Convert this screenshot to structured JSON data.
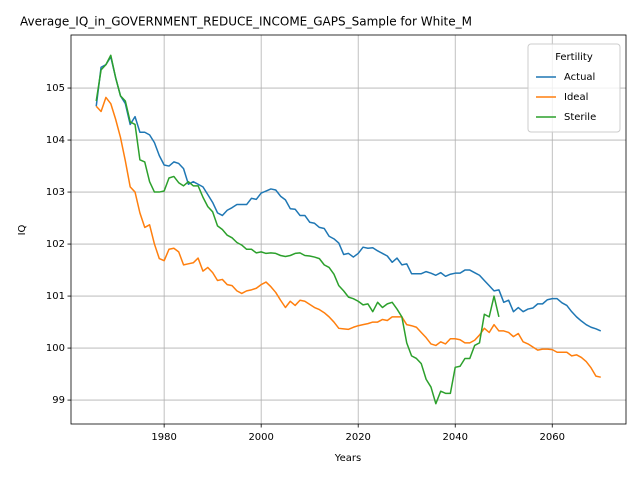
{
  "chart_data": {
    "type": "line",
    "title": "Average_IQ_in_GOVERNMENT_REDUCE_INCOME_GAPS_Sample for White_M",
    "x_label": "Years",
    "y_label": "IQ",
    "legend_title": "Fertility",
    "legend_loc": "upper right",
    "grid": true,
    "xlim": [
      1960.8,
      2075.2
    ],
    "xticks": [
      1980,
      2000,
      2020,
      2040,
      2060
    ],
    "ylim": [
      98.54,
      106.02
    ],
    "yticks": [
      99,
      100,
      101,
      102,
      103,
      104,
      105
    ],
    "x": [
      1966,
      1967,
      1968,
      1969,
      1970,
      1971,
      1972,
      1973,
      1974,
      1975,
      1976,
      1977,
      1978,
      1979,
      1980,
      1981,
      1982,
      1983,
      1984,
      1985,
      1986,
      1987,
      1988,
      1989,
      1990,
      1991,
      1992,
      1993,
      1994,
      1995,
      1996,
      1997,
      1998,
      1999,
      2000,
      2001,
      2002,
      2003,
      2004,
      2005,
      2006,
      2007,
      2008,
      2009,
      2010,
      2011,
      2012,
      2013,
      2014,
      2015,
      2016,
      2017,
      2018,
      2019,
      2020,
      2021,
      2022,
      2023,
      2024,
      2025,
      2026,
      2027,
      2028,
      2029,
      2030,
      2031,
      2032,
      2033,
      2034,
      2035,
      2036,
      2037,
      2038,
      2039,
      2040,
      2041,
      2042,
      2043,
      2044,
      2045,
      2046,
      2047,
      2048,
      2049,
      2050,
      2051,
      2052,
      2053,
      2054,
      2055,
      2056,
      2057,
      2058,
      2059,
      2060,
      2061,
      2062,
      2063,
      2064,
      2065,
      2066,
      2067,
      2068,
      2069,
      2070
    ],
    "series": [
      {
        "name": "Actual",
        "color": "#1f77b4",
        "values": [
          104.65,
          105.4,
          105.45,
          105.6,
          105.2,
          104.85,
          104.7,
          104.3,
          104.45,
          104.15,
          104.15,
          104.1,
          103.95,
          103.7,
          103.52,
          103.5,
          103.58,
          103.55,
          103.45,
          103.15,
          103.2,
          103.15,
          103.1,
          102.95,
          102.8,
          102.6,
          102.55,
          102.65,
          102.7,
          102.76,
          102.76,
          102.76,
          102.88,
          102.86,
          102.98,
          103.02,
          103.06,
          103.04,
          102.92,
          102.85,
          102.68,
          102.67,
          102.55,
          102.55,
          102.42,
          102.4,
          102.32,
          102.3,
          102.15,
          102.1,
          102.02,
          101.8,
          101.82,
          101.75,
          101.82,
          101.94,
          101.92,
          101.93,
          101.87,
          101.82,
          101.77,
          101.65,
          101.73,
          101.6,
          101.62,
          101.43,
          101.43,
          101.43,
          101.47,
          101.44,
          101.4,
          101.45,
          101.38,
          101.42,
          101.44,
          101.44,
          101.5,
          101.5,
          101.45,
          101.4,
          101.3,
          101.2,
          101.1,
          101.12,
          100.88,
          100.92,
          100.7,
          100.78,
          100.7,
          100.75,
          100.77,
          100.85,
          100.85,
          100.93,
          100.95,
          100.95,
          100.87,
          100.82,
          100.7,
          100.6,
          100.52,
          100.45,
          100.4,
          100.37,
          100.33
        ]
      },
      {
        "name": "Ideal",
        "color": "#ff7f0e",
        "values": [
          104.65,
          104.55,
          104.82,
          104.7,
          104.4,
          104.05,
          103.6,
          103.1,
          103.0,
          102.6,
          102.32,
          102.37,
          102.0,
          101.72,
          101.68,
          101.9,
          101.92,
          101.85,
          101.6,
          101.62,
          101.64,
          101.73,
          101.48,
          101.55,
          101.45,
          101.3,
          101.32,
          101.22,
          101.2,
          101.1,
          101.05,
          101.1,
          101.12,
          101.15,
          101.22,
          101.27,
          101.18,
          101.07,
          100.92,
          100.78,
          100.9,
          100.82,
          100.92,
          100.9,
          100.84,
          100.78,
          100.74,
          100.68,
          100.6,
          100.5,
          100.38,
          100.37,
          100.36,
          100.4,
          100.43,
          100.45,
          100.47,
          100.5,
          100.5,
          100.55,
          100.53,
          100.6,
          100.6,
          100.6,
          100.45,
          100.43,
          100.4,
          100.3,
          100.2,
          100.08,
          100.05,
          100.12,
          100.08,
          100.18,
          100.18,
          100.16,
          100.1,
          100.1,
          100.15,
          100.25,
          100.38,
          100.3,
          100.45,
          100.33,
          100.33,
          100.3,
          100.22,
          100.28,
          100.12,
          100.08,
          100.02,
          99.96,
          99.98,
          99.98,
          99.97,
          99.92,
          99.92,
          99.92,
          99.85,
          99.87,
          99.82,
          99.74,
          99.62,
          99.46,
          99.44
        ]
      },
      {
        "name": "Sterile",
        "color": "#2ca02c",
        "values": [
          104.75,
          105.35,
          105.45,
          105.63,
          105.2,
          104.85,
          104.75,
          104.35,
          104.3,
          103.62,
          103.58,
          103.2,
          103.0,
          103.0,
          103.02,
          103.27,
          103.3,
          103.18,
          103.12,
          103.2,
          103.12,
          103.12,
          102.9,
          102.72,
          102.62,
          102.35,
          102.28,
          102.17,
          102.12,
          102.03,
          101.98,
          101.9,
          101.9,
          101.83,
          101.85,
          101.82,
          101.83,
          101.82,
          101.78,
          101.76,
          101.78,
          101.82,
          101.83,
          101.78,
          101.77,
          101.75,
          101.72,
          101.6,
          101.55,
          101.42,
          101.2,
          101.1,
          100.98,
          100.95,
          100.9,
          100.83,
          100.85,
          100.7,
          100.88,
          100.78,
          100.85,
          100.88,
          100.75,
          100.6,
          100.1,
          99.85,
          99.8,
          99.7,
          99.4,
          99.25,
          98.93,
          99.17,
          99.13,
          99.13,
          99.63,
          99.65,
          99.8,
          99.8,
          100.05,
          100.1,
          100.65,
          100.6,
          101.0,
          100.6,
          null,
          null,
          null,
          null,
          null,
          null,
          null,
          null,
          null,
          null,
          null,
          null,
          null,
          null,
          null,
          null,
          null,
          null,
          null,
          null,
          null
        ]
      }
    ]
  }
}
